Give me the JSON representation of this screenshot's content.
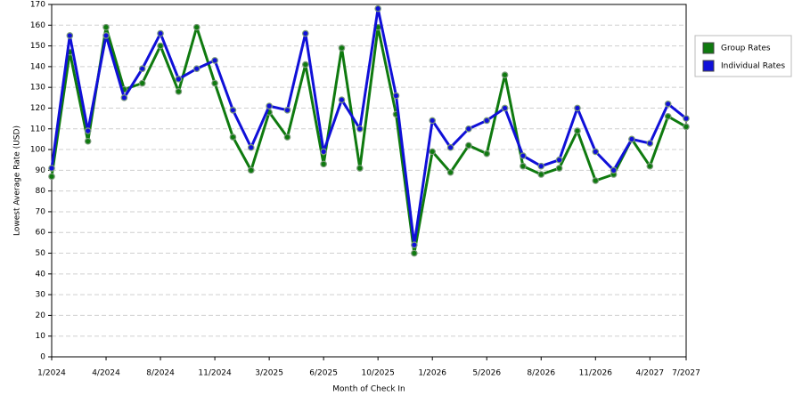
{
  "chart_data": {
    "type": "line",
    "x_label": "Month of Check In",
    "y_label": "Lowest Average Rate (USD)",
    "categories": [
      "1/2024",
      null,
      null,
      "4/2024",
      null,
      null,
      "8/2024",
      null,
      null,
      "11/2024",
      null,
      null,
      "3/2025",
      null,
      null,
      "6/2025",
      null,
      null,
      "10/2025",
      null,
      null,
      "1/2026",
      null,
      null,
      "5/2026",
      null,
      null,
      "8/2026",
      null,
      null,
      "11/2026",
      null,
      null,
      "4/2027",
      null,
      "7/2027"
    ],
    "series": [
      {
        "name": "Group Rates",
        "color": "#0f7a0f",
        "values": [
          87,
          147,
          104,
          159,
          129,
          132,
          150,
          128,
          159,
          132,
          106,
          90,
          118,
          106,
          141,
          93,
          149,
          91,
          159,
          117,
          50,
          99,
          89,
          102,
          98,
          136,
          92,
          88,
          91,
          109,
          85,
          88,
          105,
          92,
          116,
          111
        ]
      },
      {
        "name": "Individual Rates",
        "color": "#1010d8",
        "values": [
          91,
          155,
          109,
          155,
          125,
          139,
          156,
          134,
          139,
          143,
          119,
          101,
          121,
          119,
          156,
          99,
          124,
          110,
          168,
          126,
          54,
          114,
          101,
          110,
          114,
          120,
          97,
          92,
          95,
          120,
          99,
          90,
          105,
          103,
          122,
          115
        ]
      }
    ],
    "ylim": [
      0,
      170
    ],
    "yticks": [
      0,
      10,
      20,
      30,
      40,
      50,
      60,
      70,
      80,
      90,
      100,
      110,
      120,
      130,
      140,
      150,
      160,
      170
    ],
    "grid": true,
    "legend": "right"
  }
}
